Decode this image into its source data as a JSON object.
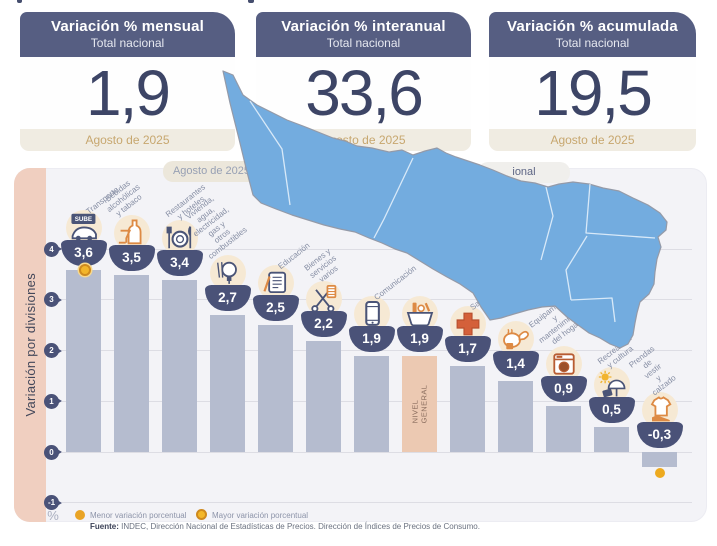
{
  "cards": [
    {
      "title": "Variación % mensual",
      "subtitle": "Total nacional",
      "value": "1,9",
      "period": "Agosto de 2025"
    },
    {
      "title": "Variación % interanual",
      "subtitle": "Total nacional",
      "value": "33,6",
      "period": "Agosto de 2025"
    },
    {
      "title": "Variación % acumulada",
      "subtitle": "Total nacional",
      "value": "19,5",
      "period": "Agosto de 2025"
    }
  ],
  "overlay_pills": {
    "left_text": "Agosto de 2025",
    "right_text_fragment": "ional"
  },
  "chart": {
    "axis_label": "Variación por divisiones",
    "unit_label": "%",
    "ticks": [
      4,
      3,
      2,
      1,
      0,
      -1
    ],
    "general_level_label": "NIVEL\nGENERAL",
    "bars": [
      {
        "label": "Transporte",
        "value": 3.6,
        "value_label": "3,6",
        "icon": "transport-icon",
        "marker": "mayor"
      },
      {
        "label": "Bebidas\nalcohólicas\ny tabaco",
        "value": 3.5,
        "value_label": "3,5",
        "icon": "alcohol-tobacco-icon"
      },
      {
        "label": "Restaurantes\ny hoteles",
        "value": 3.4,
        "value_label": "3,4",
        "icon": "restaurants-hotels-icon"
      },
      {
        "label": "Vivienda, agua,\nelectricidad, gas y\notros combustibles",
        "value": 2.7,
        "value_label": "2,7",
        "icon": "housing-utilities-icon"
      },
      {
        "label": "Educación",
        "value": 2.5,
        "value_label": "2,5",
        "icon": "education-icon"
      },
      {
        "label": "Bienes y\nservicios varios",
        "value": 2.2,
        "value_label": "2,2",
        "icon": "goods-services-icon"
      },
      {
        "label": "Comunicación",
        "value": 1.9,
        "value_label": "1,9",
        "icon": "communication-icon"
      },
      {
        "label": "",
        "value": 1.9,
        "value_label": "1,9",
        "icon": "shopping-basket-icon",
        "highlight": true
      },
      {
        "label": "Salud",
        "value": 1.7,
        "value_label": "1,7",
        "icon": "health-cross-icon"
      },
      {
        "label": "",
        "value": 1.4,
        "value_label": "1,4",
        "icon": "roast-chicken-icon"
      },
      {
        "label": "Equipamiento\ny mantenimiento\ndel hogar",
        "value": 0.9,
        "value_label": "0,9",
        "icon": "washing-machine-icon"
      },
      {
        "label": "Recreación\ny cultura",
        "value": 0.5,
        "value_label": "0,5",
        "icon": "recreation-icon"
      },
      {
        "label": "Prendas de vestir\ny calzado",
        "value": -0.3,
        "value_label": "-0,3",
        "icon": "clothing-icon",
        "marker": "menor"
      }
    ],
    "legend": [
      {
        "style": "solid",
        "label": "Menor variación porcentual"
      },
      {
        "style": "ring",
        "label": "Mayor variación porcentual"
      }
    ],
    "source_bold": "Fuente:",
    "source_text": " INDEC, Dirección Nacional de Estadísticas de Precios. Dirección de Índices de Precios de Consumo."
  },
  "chart_data": {
    "type": "bar",
    "title": "Variación por divisiones",
    "categories": [
      "Transporte",
      "Bebidas alcohólicas y tabaco",
      "Restaurantes y hoteles",
      "Vivienda, agua, electricidad, gas y otros combustibles",
      "Educación",
      "Bienes y servicios varios",
      "Comunicación",
      "NIVEL GENERAL",
      "Salud",
      "",
      "Equipamiento y mantenimiento del hogar",
      "Recreación y cultura",
      "Prendas de vestir y calzado"
    ],
    "values": [
      3.6,
      3.5,
      3.4,
      2.7,
      2.5,
      2.2,
      1.9,
      1.9,
      1.7,
      1.4,
      0.9,
      0.5,
      -0.3
    ],
    "xlabel": "",
    "ylabel": "%",
    "ylim": [
      -1,
      4
    ],
    "grid": true,
    "highlight_category": "NIVEL GENERAL",
    "annotations": [
      "Mayor variación porcentual: Transporte 3,6",
      "Menor variación porcentual: Prendas de vestir y calzado -0,3"
    ],
    "headline_indicators": [
      {
        "name": "Variación % mensual",
        "scope": "Total nacional",
        "value": 1.9,
        "period": "Agosto de 2025"
      },
      {
        "name": "Variación % interanual",
        "scope": "Total nacional",
        "value": 33.6,
        "period": "Agosto de 2025"
      },
      {
        "name": "Variación % acumulada",
        "scope": "Total nacional",
        "value": 19.5,
        "period": "Agosto de 2025"
      }
    ]
  },
  "colors": {
    "card_header": "#565e82",
    "card_number": "#3d4566",
    "card_period": "#c7a76f",
    "panel_bg": "#f3f3f7",
    "axis_strip": "#f0cfc0",
    "bar": "#b5bccf",
    "bar_highlight": "#ecc9b2",
    "badge": "#4a5278",
    "map_fill": "#73acdf",
    "marker_yellow": "#edaa1f"
  }
}
